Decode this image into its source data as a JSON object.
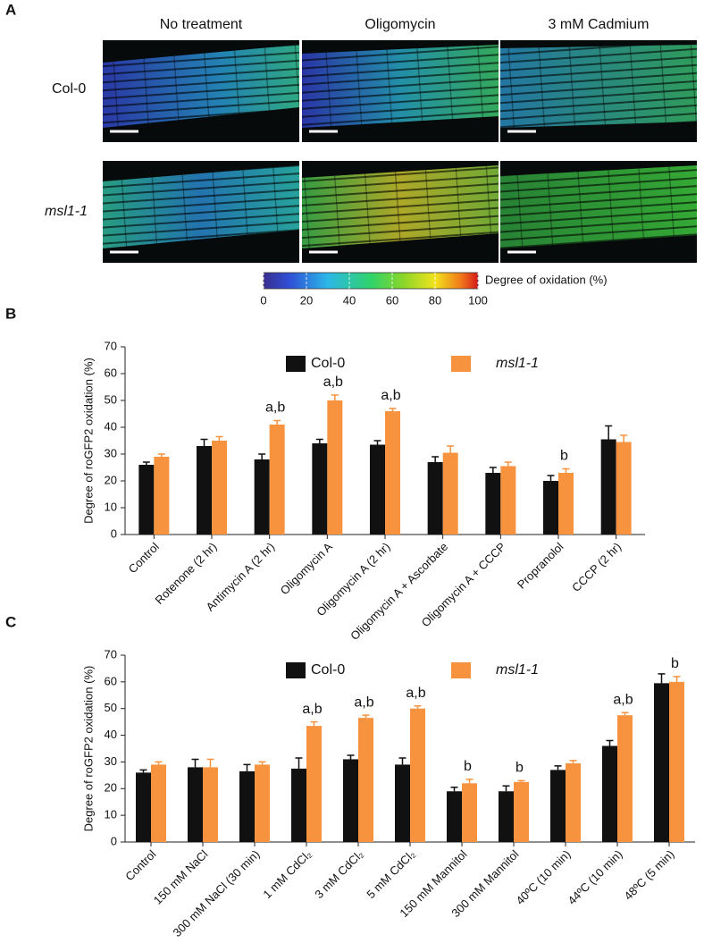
{
  "panel_a": {
    "label": "A",
    "columns": [
      "No treatment",
      "Oligomycin",
      "3 mM Cadmium"
    ],
    "rows": [
      "Col-0",
      "msl1-1"
    ],
    "colorbar": {
      "label": "Degree of oxidation (%)",
      "lim": [
        0,
        100
      ],
      "ticks": [
        0,
        20,
        40,
        60,
        80,
        100
      ]
    }
  },
  "chart_data": [
    {
      "type": "bar",
      "panel_label": "B",
      "ylabel": "Degree of roGFP2 oxidation (%)",
      "categories": [
        "Control",
        "Rotenone (2 hr)",
        "Antimycin A (2 hr)",
        "Oligomycin A",
        "Oligomycin A (2 hr)",
        "Oligomycin A + Ascorbate",
        "Oligomycin A + CCCP",
        "Propranolol",
        "CCCP (2 hr)"
      ],
      "series": [
        {
          "name": "Col-0",
          "color": "#111111",
          "values": [
            26,
            33,
            28,
            34,
            33.5,
            27,
            23,
            20,
            35.5
          ],
          "errors": [
            1,
            2.5,
            2,
            1.5,
            1.5,
            2,
            2,
            2,
            5
          ]
        },
        {
          "name": "msl1-1",
          "color": "#f7923f",
          "values": [
            29,
            35,
            41,
            50,
            46,
            30.5,
            25.5,
            23,
            34.5
          ],
          "errors": [
            1,
            1.5,
            1.5,
            2,
            1,
            2.5,
            1.5,
            1.5,
            2.5
          ]
        }
      ],
      "annotations": [
        null,
        null,
        "a,b",
        "a,b",
        "a,b",
        null,
        null,
        "b",
        null
      ],
      "ylim": [
        0,
        70
      ],
      "yticks": [
        0,
        10,
        20,
        30,
        40,
        50,
        60,
        70
      ]
    },
    {
      "type": "bar",
      "panel_label": "C",
      "ylabel": "Degree of roGFP2 oxidation (%)",
      "categories": [
        "Control",
        "150 mM NaCl",
        "300 mM NaCl (30 min)",
        "1 mM CdCl₂",
        "3 mM CdCl₂",
        "5 mM CdCl₂",
        "150 mM Mannitol",
        "300 mM Mannitol",
        "40ºC (10 min)",
        "44ºC (10 min)",
        "48ºC (5 min)"
      ],
      "series": [
        {
          "name": "Col-0",
          "color": "#111111",
          "values": [
            26,
            28,
            26.5,
            27.5,
            31,
            29,
            19,
            19,
            27,
            36,
            59.5
          ],
          "errors": [
            1,
            3,
            2.5,
            4,
            1.5,
            2.5,
            1.5,
            2,
            1.5,
            2,
            3.5
          ]
        },
        {
          "name": "msl1-1",
          "color": "#f7923f",
          "values": [
            29,
            28,
            29,
            43.5,
            46.5,
            50,
            22,
            22.5,
            29.5,
            47.5,
            60
          ],
          "errors": [
            1,
            3,
            1,
            1.5,
            1,
            1,
            1.5,
            0.5,
            1,
            1,
            2
          ]
        }
      ],
      "annotations": [
        null,
        null,
        null,
        "a,b",
        "a,b",
        "a,b",
        "b",
        "b",
        null,
        "a,b",
        "b"
      ],
      "ylim": [
        0,
        70
      ],
      "yticks": [
        0,
        10,
        20,
        30,
        40,
        50,
        60,
        70
      ]
    }
  ]
}
